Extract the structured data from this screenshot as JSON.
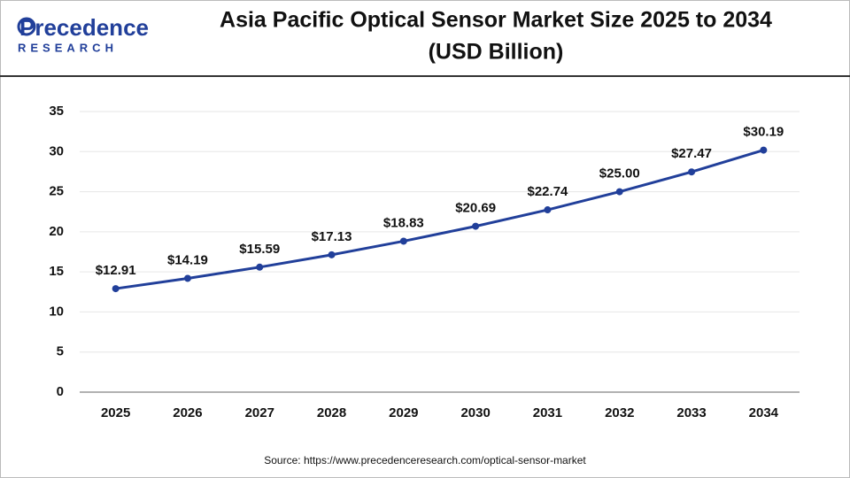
{
  "logo": {
    "name": "Precedence",
    "tagline": "RESEARCH"
  },
  "chart_data": {
    "type": "line",
    "title": [
      "Asia Pacific Optical Sensor Market Size 2025 to 2034",
      "(USD Billion)"
    ],
    "categories": [
      "2025",
      "2026",
      "2027",
      "2028",
      "2029",
      "2030",
      "2031",
      "2032",
      "2033",
      "2034"
    ],
    "values": [
      12.91,
      14.19,
      15.59,
      17.13,
      18.83,
      20.69,
      22.74,
      25.0,
      27.47,
      30.19
    ],
    "value_labels": [
      "$12.91",
      "$14.19",
      "$15.59",
      "$17.13",
      "$18.83",
      "$20.69",
      "$22.74",
      "$25.00",
      "$27.47",
      "$30.19"
    ],
    "color": "#213f9a",
    "ylim": [
      0,
      35
    ],
    "yticks": [
      0,
      5,
      10,
      15,
      20,
      25,
      30,
      35
    ],
    "grid": true,
    "source": "Source: https://www.precedenceresearch.com/optical-sensor-market"
  }
}
